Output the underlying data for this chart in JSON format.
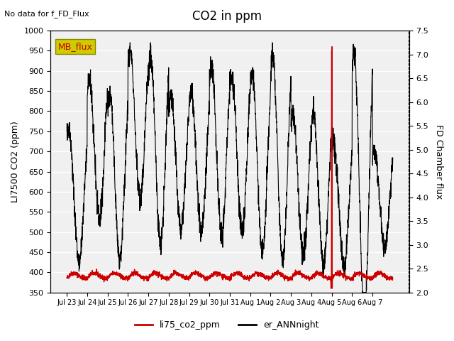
{
  "title": "CO2 in ppm",
  "top_left_text": "No data for f_FD_Flux",
  "ylabel_left": "LI7500 CO2 (ppm)",
  "ylabel_right": "FD Chamber flux",
  "ylim_left": [
    350,
    1000
  ],
  "ylim_right": [
    2.0,
    7.5
  ],
  "yticks_left": [
    350,
    400,
    450,
    500,
    550,
    600,
    650,
    700,
    750,
    800,
    850,
    900,
    950,
    1000
  ],
  "yticks_right": [
    2.0,
    2.5,
    3.0,
    3.5,
    4.0,
    4.5,
    5.0,
    5.5,
    6.0,
    6.5,
    7.0,
    7.5
  ],
  "xtick_labels": [
    "Jul 23",
    "Jul 24",
    "Jul 25",
    "Jul 26",
    "Jul 27",
    "Jul 28",
    "Jul 29",
    "Jul 30",
    "Jul 31",
    "Aug 1",
    "Aug 2",
    "Aug 3",
    "Aug 4",
    "Aug 5",
    "Aug 6",
    "Aug 7"
  ],
  "legend_entries": [
    "li75_co2_ppm",
    "er_ANNnight"
  ],
  "legend_colors": [
    "#cc0000",
    "#000000"
  ],
  "mb_flux_box_color": "#cccc00",
  "mb_flux_text_color": "#cc0000",
  "line_co2_color": "#cc0000",
  "line_er_color": "#000000",
  "spike_color": "#cc0000",
  "bg_color": "#e8e8e8",
  "plot_bg_color": "#f0f0f0"
}
